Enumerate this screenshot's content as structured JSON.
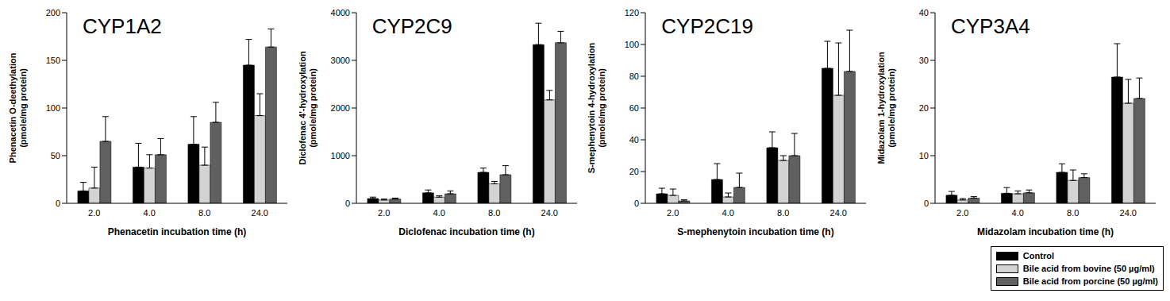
{
  "chart_data": [
    {
      "type": "bar",
      "title": "CYP1A2",
      "x_label": "Phenacetin incubation time (h)",
      "y_label": "Phenacetin O-deethylation (pmole/mg protein)",
      "categories": [
        "2.0",
        "4.0",
        "8.0",
        "24.0"
      ],
      "ylim": [
        0,
        200
      ],
      "yticks": [
        0,
        50,
        100,
        150,
        200
      ],
      "series": [
        {
          "name": "Control",
          "color": "#000000",
          "values": [
            13,
            38,
            62,
            145
          ],
          "errors": [
            9,
            25,
            29,
            27
          ]
        },
        {
          "name": "Bile acid from bovine (50 µg/ml)",
          "color": "#d3d3d3",
          "values": [
            16,
            37,
            40,
            92
          ],
          "errors": [
            22,
            14,
            19,
            23
          ]
        },
        {
          "name": "Bile acid from porcine (50 µg/ml)",
          "color": "#606060",
          "values": [
            65,
            51,
            85,
            164
          ],
          "errors": [
            26,
            17,
            21,
            19
          ]
        }
      ]
    },
    {
      "type": "bar",
      "title": "CYP2C9",
      "x_label": "Diclofenac incubation time (h)",
      "y_label": "Diclofenac 4'-hydroxylation (pmole/mg protein)",
      "categories": [
        "2.0",
        "4.0",
        "8.0",
        "24.0"
      ],
      "ylim": [
        0,
        4000
      ],
      "yticks": [
        0,
        1000,
        2000,
        3000,
        4000
      ],
      "series": [
        {
          "name": "Control",
          "color": "#000000",
          "values": [
            100,
            220,
            650,
            3330
          ],
          "errors": [
            30,
            60,
            90,
            450
          ]
        },
        {
          "name": "Bile acid from bovine (50 µg/ml)",
          "color": "#d3d3d3",
          "values": [
            70,
            130,
            410,
            2170
          ],
          "errors": [
            20,
            30,
            50,
            200
          ]
        },
        {
          "name": "Bile acid from porcine (50 µg/ml)",
          "color": "#606060",
          "values": [
            90,
            200,
            600,
            3370
          ],
          "errors": [
            20,
            60,
            190,
            240
          ]
        }
      ]
    },
    {
      "type": "bar",
      "title": "CYP2C19",
      "x_label": "S-mephenytoin incubation time (h)",
      "y_label": "S-mephenytoin 4-hydroxylation (pmole/mg protein)",
      "categories": [
        "2.0",
        "4.0",
        "8.0",
        "24.0"
      ],
      "ylim": [
        0,
        120
      ],
      "yticks": [
        0,
        20,
        40,
        60,
        80,
        100,
        120
      ],
      "series": [
        {
          "name": "Control",
          "color": "#000000",
          "values": [
            6,
            15,
            35,
            85
          ],
          "errors": [
            3.5,
            10,
            10,
            17
          ]
        },
        {
          "name": "Bile acid from bovine (50 µg/ml)",
          "color": "#d3d3d3",
          "values": [
            5,
            4,
            27,
            68
          ],
          "errors": [
            4,
            2.5,
            3,
            33
          ]
        },
        {
          "name": "Bile acid from porcine (50 µg/ml)",
          "color": "#606060",
          "values": [
            1.5,
            10,
            30,
            83
          ],
          "errors": [
            0.8,
            9,
            14,
            26
          ]
        }
      ]
    },
    {
      "type": "bar",
      "title": "CYP3A4",
      "x_label": "Midazolam incubation time (h)",
      "y_label": "Midazolam 1-hydroxylation (pmole/mg protein)",
      "categories": [
        "2.0",
        "4.0",
        "8.0",
        "24.0"
      ],
      "ylim": [
        0,
        40
      ],
      "yticks": [
        0,
        10,
        20,
        30,
        40
      ],
      "series": [
        {
          "name": "Control",
          "color": "#000000",
          "values": [
            1.7,
            2.1,
            6.5,
            26.5
          ],
          "errors": [
            0.8,
            1.2,
            1.8,
            7
          ]
        },
        {
          "name": "Bile acid from bovine (50 µg/ml)",
          "color": "#d3d3d3",
          "values": [
            0.7,
            2.0,
            4.8,
            21
          ],
          "errors": [
            0.3,
            0.6,
            2.2,
            5
          ]
        },
        {
          "name": "Bile acid from porcine (50 µg/ml)",
          "color": "#606060",
          "values": [
            1.1,
            2.2,
            5.4,
            22
          ],
          "errors": [
            0.3,
            0.6,
            0.8,
            4.3
          ]
        }
      ]
    }
  ]
}
